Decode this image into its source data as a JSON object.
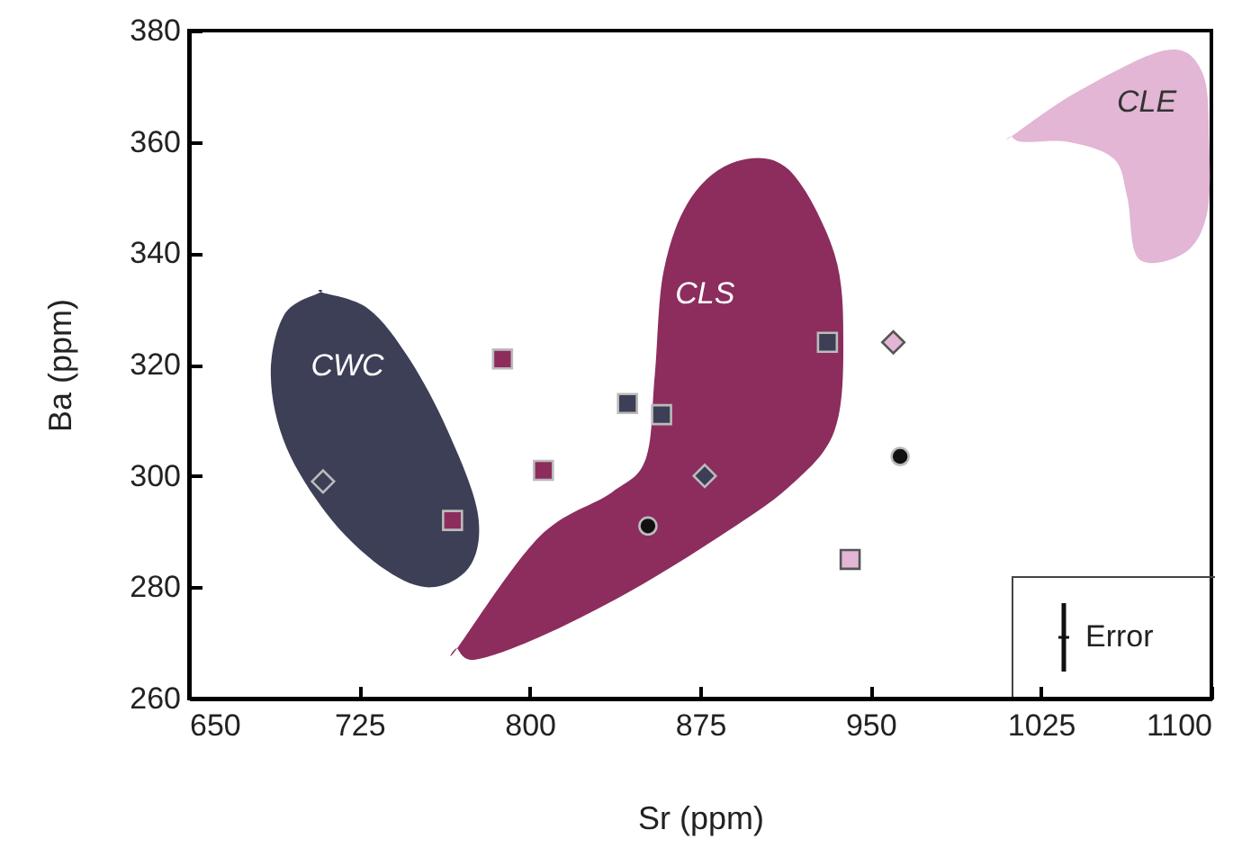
{
  "chart_data": {
    "type": "scatter",
    "xlabel": "Sr (ppm)",
    "ylabel": "Ba (ppm)",
    "xlim": [
      650,
      1100
    ],
    "xticks": [
      650,
      725,
      800,
      875,
      950,
      1025,
      1100
    ],
    "ylim": [
      260,
      380
    ],
    "yticks": [
      260,
      280,
      300,
      320,
      340,
      360,
      380
    ],
    "grid": false,
    "series": [
      {
        "type": "area",
        "name": "CWC",
        "color": "#3d3f57",
        "x": [
          708,
          729,
          747,
          764,
          777,
          774,
          757,
          737,
          713,
          693,
          686,
          692
        ],
        "values": [
          333,
          330,
          321,
          308,
          293.5,
          284,
          280,
          283,
          292,
          305,
          318,
          329
        ]
      },
      {
        "type": "area",
        "name": "CLS",
        "color": "#8c2d5e",
        "x": [
          768,
          804,
          836,
          851,
          855,
          859,
          871,
          891,
          914,
          934,
          938,
          934,
          914,
          883,
          843,
          804,
          776
        ],
        "values": [
          269,
          289,
          297,
          303,
          318,
          337,
          350,
          356.5,
          355,
          340,
          324,
          308,
          298,
          289,
          279,
          271,
          267
        ]
      },
      {
        "type": "area",
        "name": "CLE",
        "color": "#e2b6d4",
        "x": [
          1012,
          1041,
          1080,
          1096,
          1099,
          1098,
          1088,
          1068,
          1063,
          1057,
          1037,
          1017
        ],
        "values": [
          361,
          369,
          376.5,
          372.5,
          360,
          347,
          340,
          339,
          350,
          357,
          360,
          360
        ]
      },
      {
        "type": "scatter",
        "marker": "diamond",
        "color": "#3d3f57",
        "x": [
          709,
          877
        ],
        "values": [
          299,
          300
        ]
      },
      {
        "type": "scatter",
        "marker": "diamond",
        "color": "#e2b6d4",
        "x": [
          960
        ],
        "values": [
          324
        ]
      },
      {
        "type": "scatter",
        "marker": "square",
        "color": "#8c2d5e",
        "x": [
          766,
          788,
          806
        ],
        "values": [
          292,
          321,
          301
        ]
      },
      {
        "type": "scatter",
        "marker": "square",
        "color": "#3d3f57",
        "x": [
          843,
          858,
          931
        ],
        "values": [
          313,
          311,
          324
        ]
      },
      {
        "type": "scatter",
        "marker": "square",
        "color": "#e2b6d4",
        "x": [
          941
        ],
        "values": [
          285
        ]
      },
      {
        "type": "scatter",
        "marker": "circle",
        "color": "#111111",
        "x": [
          852,
          963
        ],
        "values": [
          291,
          303.5
        ]
      }
    ],
    "annotations": [
      "Error"
    ]
  }
}
